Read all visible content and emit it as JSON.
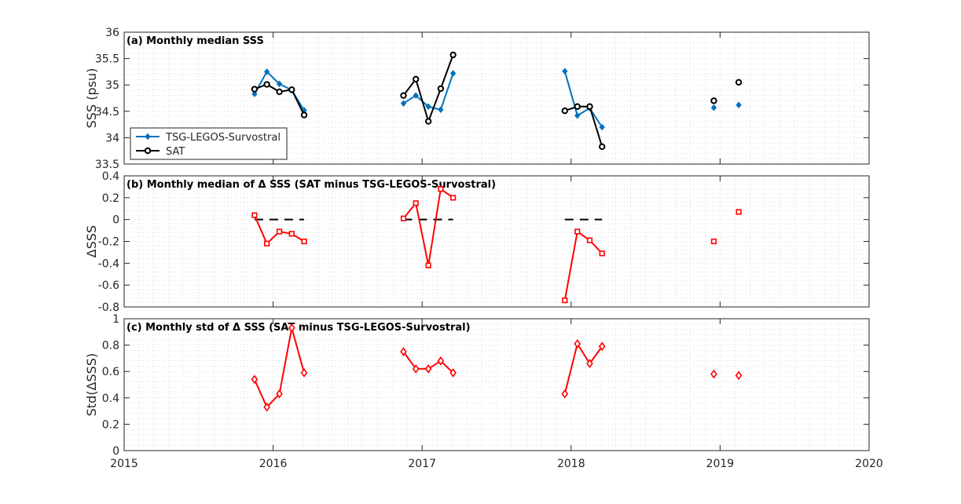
{
  "colors": {
    "tsg": "#0072BD",
    "sat": "#000000",
    "delta": "#FF0000",
    "zero": "#000000",
    "grid": "#DCDCDC",
    "axis": "#262626"
  },
  "legend": {
    "tsg": "TSG-LEGOS-Survostral",
    "sat": "SAT",
    "placement": "lower-left of panel a"
  },
  "chart_data": [
    {
      "type": "line",
      "title": "(a) Monthly median SSS",
      "ylabel": "SSS (psu)",
      "xlim": [
        2015,
        2020
      ],
      "ylim": [
        33.5,
        36
      ],
      "yticks": [
        33.5,
        34,
        34.5,
        35,
        35.5,
        36
      ],
      "yticklabels": [
        "33.5",
        "34",
        "34.5",
        "35",
        "35.5",
        "36"
      ],
      "grid": true,
      "series": [
        {
          "name": "TSG-LEGOS-Survostral",
          "marker": "diamond",
          "segments": [
            [
              [
                2015.875,
                34.83
              ],
              [
                2015.958,
                35.25
              ],
              [
                2016.042,
                35.02
              ],
              [
                2016.125,
                34.9
              ],
              [
                2016.208,
                34.52
              ]
            ],
            [
              [
                2016.875,
                34.65
              ],
              [
                2016.958,
                34.8
              ],
              [
                2017.042,
                34.59
              ],
              [
                2017.125,
                34.53
              ],
              [
                2017.208,
                35.22
              ]
            ],
            [
              [
                2017.958,
                35.26
              ],
              [
                2018.042,
                34.42
              ],
              [
                2018.125,
                34.56
              ],
              [
                2018.208,
                34.2
              ]
            ],
            [
              [
                2018.958,
                34.57
              ]
            ],
            [
              [
                2019.125,
                34.62
              ]
            ]
          ]
        },
        {
          "name": "SAT",
          "marker": "circle",
          "segments": [
            [
              [
                2015.875,
                34.92
              ],
              [
                2015.958,
                35.01
              ],
              [
                2016.042,
                34.87
              ],
              [
                2016.125,
                34.91
              ],
              [
                2016.208,
                34.43
              ]
            ],
            [
              [
                2016.875,
                34.8
              ],
              [
                2016.958,
                35.11
              ],
              [
                2017.042,
                34.31
              ],
              [
                2017.125,
                34.93
              ],
              [
                2017.208,
                35.57
              ]
            ],
            [
              [
                2017.958,
                34.51
              ],
              [
                2018.042,
                34.59
              ],
              [
                2018.125,
                34.59
              ],
              [
                2018.208,
                33.83
              ]
            ],
            [
              [
                2018.958,
                34.7
              ]
            ],
            [
              [
                2019.125,
                35.05
              ]
            ]
          ]
        }
      ]
    },
    {
      "type": "line",
      "title": "(b) Monthly median of Δ SSS (SAT minus TSG-LEGOS-Survostral)",
      "ylabel": "ΔSSS",
      "xlim": [
        2015,
        2020
      ],
      "ylim": [
        -0.8,
        0.4
      ],
      "yticks": [
        -0.8,
        -0.6,
        -0.4,
        -0.2,
        0,
        0.2,
        0.4
      ],
      "yticklabels": [
        "-0.8",
        "-0.6",
        "-0.4",
        "-0.2",
        "0",
        "0.2",
        "0.4"
      ],
      "grid": true,
      "zero_lines": [
        [
          2015.875,
          2016.208
        ],
        [
          2016.875,
          2017.208
        ],
        [
          2017.958,
          2018.208
        ]
      ],
      "series": [
        {
          "marker": "square",
          "segments": [
            [
              [
                2015.875,
                0.04
              ],
              [
                2015.958,
                -0.22
              ],
              [
                2016.042,
                -0.11
              ],
              [
                2016.125,
                -0.13
              ],
              [
                2016.208,
                -0.2
              ]
            ],
            [
              [
                2016.875,
                0.01
              ],
              [
                2016.958,
                0.15
              ],
              [
                2017.042,
                -0.42
              ],
              [
                2017.125,
                0.28
              ],
              [
                2017.208,
                0.2
              ]
            ],
            [
              [
                2017.958,
                -0.74
              ],
              [
                2018.042,
                -0.11
              ],
              [
                2018.125,
                -0.19
              ],
              [
                2018.208,
                -0.31
              ]
            ],
            [
              [
                2018.958,
                -0.2
              ]
            ],
            [
              [
                2019.125,
                0.07
              ]
            ]
          ]
        }
      ]
    },
    {
      "type": "line",
      "title": "(c) Monthly std of Δ SSS (SAT minus TSG-LEGOS-Survostral)",
      "ylabel": "Std(ΔSSS)",
      "xlim": [
        2015,
        2020
      ],
      "ylim": [
        0,
        1
      ],
      "yticks": [
        0,
        0.2,
        0.4,
        0.6,
        0.8,
        1
      ],
      "yticklabels": [
        "0",
        "0.2",
        "0.4",
        "0.6",
        "0.8",
        "1"
      ],
      "xticks": [
        2015,
        2016,
        2017,
        2018,
        2019,
        2020
      ],
      "xticklabels": [
        "2015",
        "2016",
        "2017",
        "2018",
        "2019",
        "2020"
      ],
      "grid": true,
      "series": [
        {
          "marker": "diamond",
          "segments": [
            [
              [
                2015.875,
                0.54
              ],
              [
                2015.958,
                0.33
              ],
              [
                2016.042,
                0.43
              ],
              [
                2016.125,
                0.93
              ],
              [
                2016.208,
                0.59
              ]
            ],
            [
              [
                2016.875,
                0.75
              ],
              [
                2016.958,
                0.62
              ],
              [
                2017.042,
                0.62
              ],
              [
                2017.125,
                0.68
              ],
              [
                2017.208,
                0.59
              ]
            ],
            [
              [
                2017.958,
                0.43
              ],
              [
                2018.042,
                0.81
              ],
              [
                2018.125,
                0.66
              ],
              [
                2018.208,
                0.79
              ]
            ],
            [
              [
                2018.958,
                0.58
              ]
            ],
            [
              [
                2019.125,
                0.57
              ]
            ]
          ]
        }
      ]
    }
  ]
}
